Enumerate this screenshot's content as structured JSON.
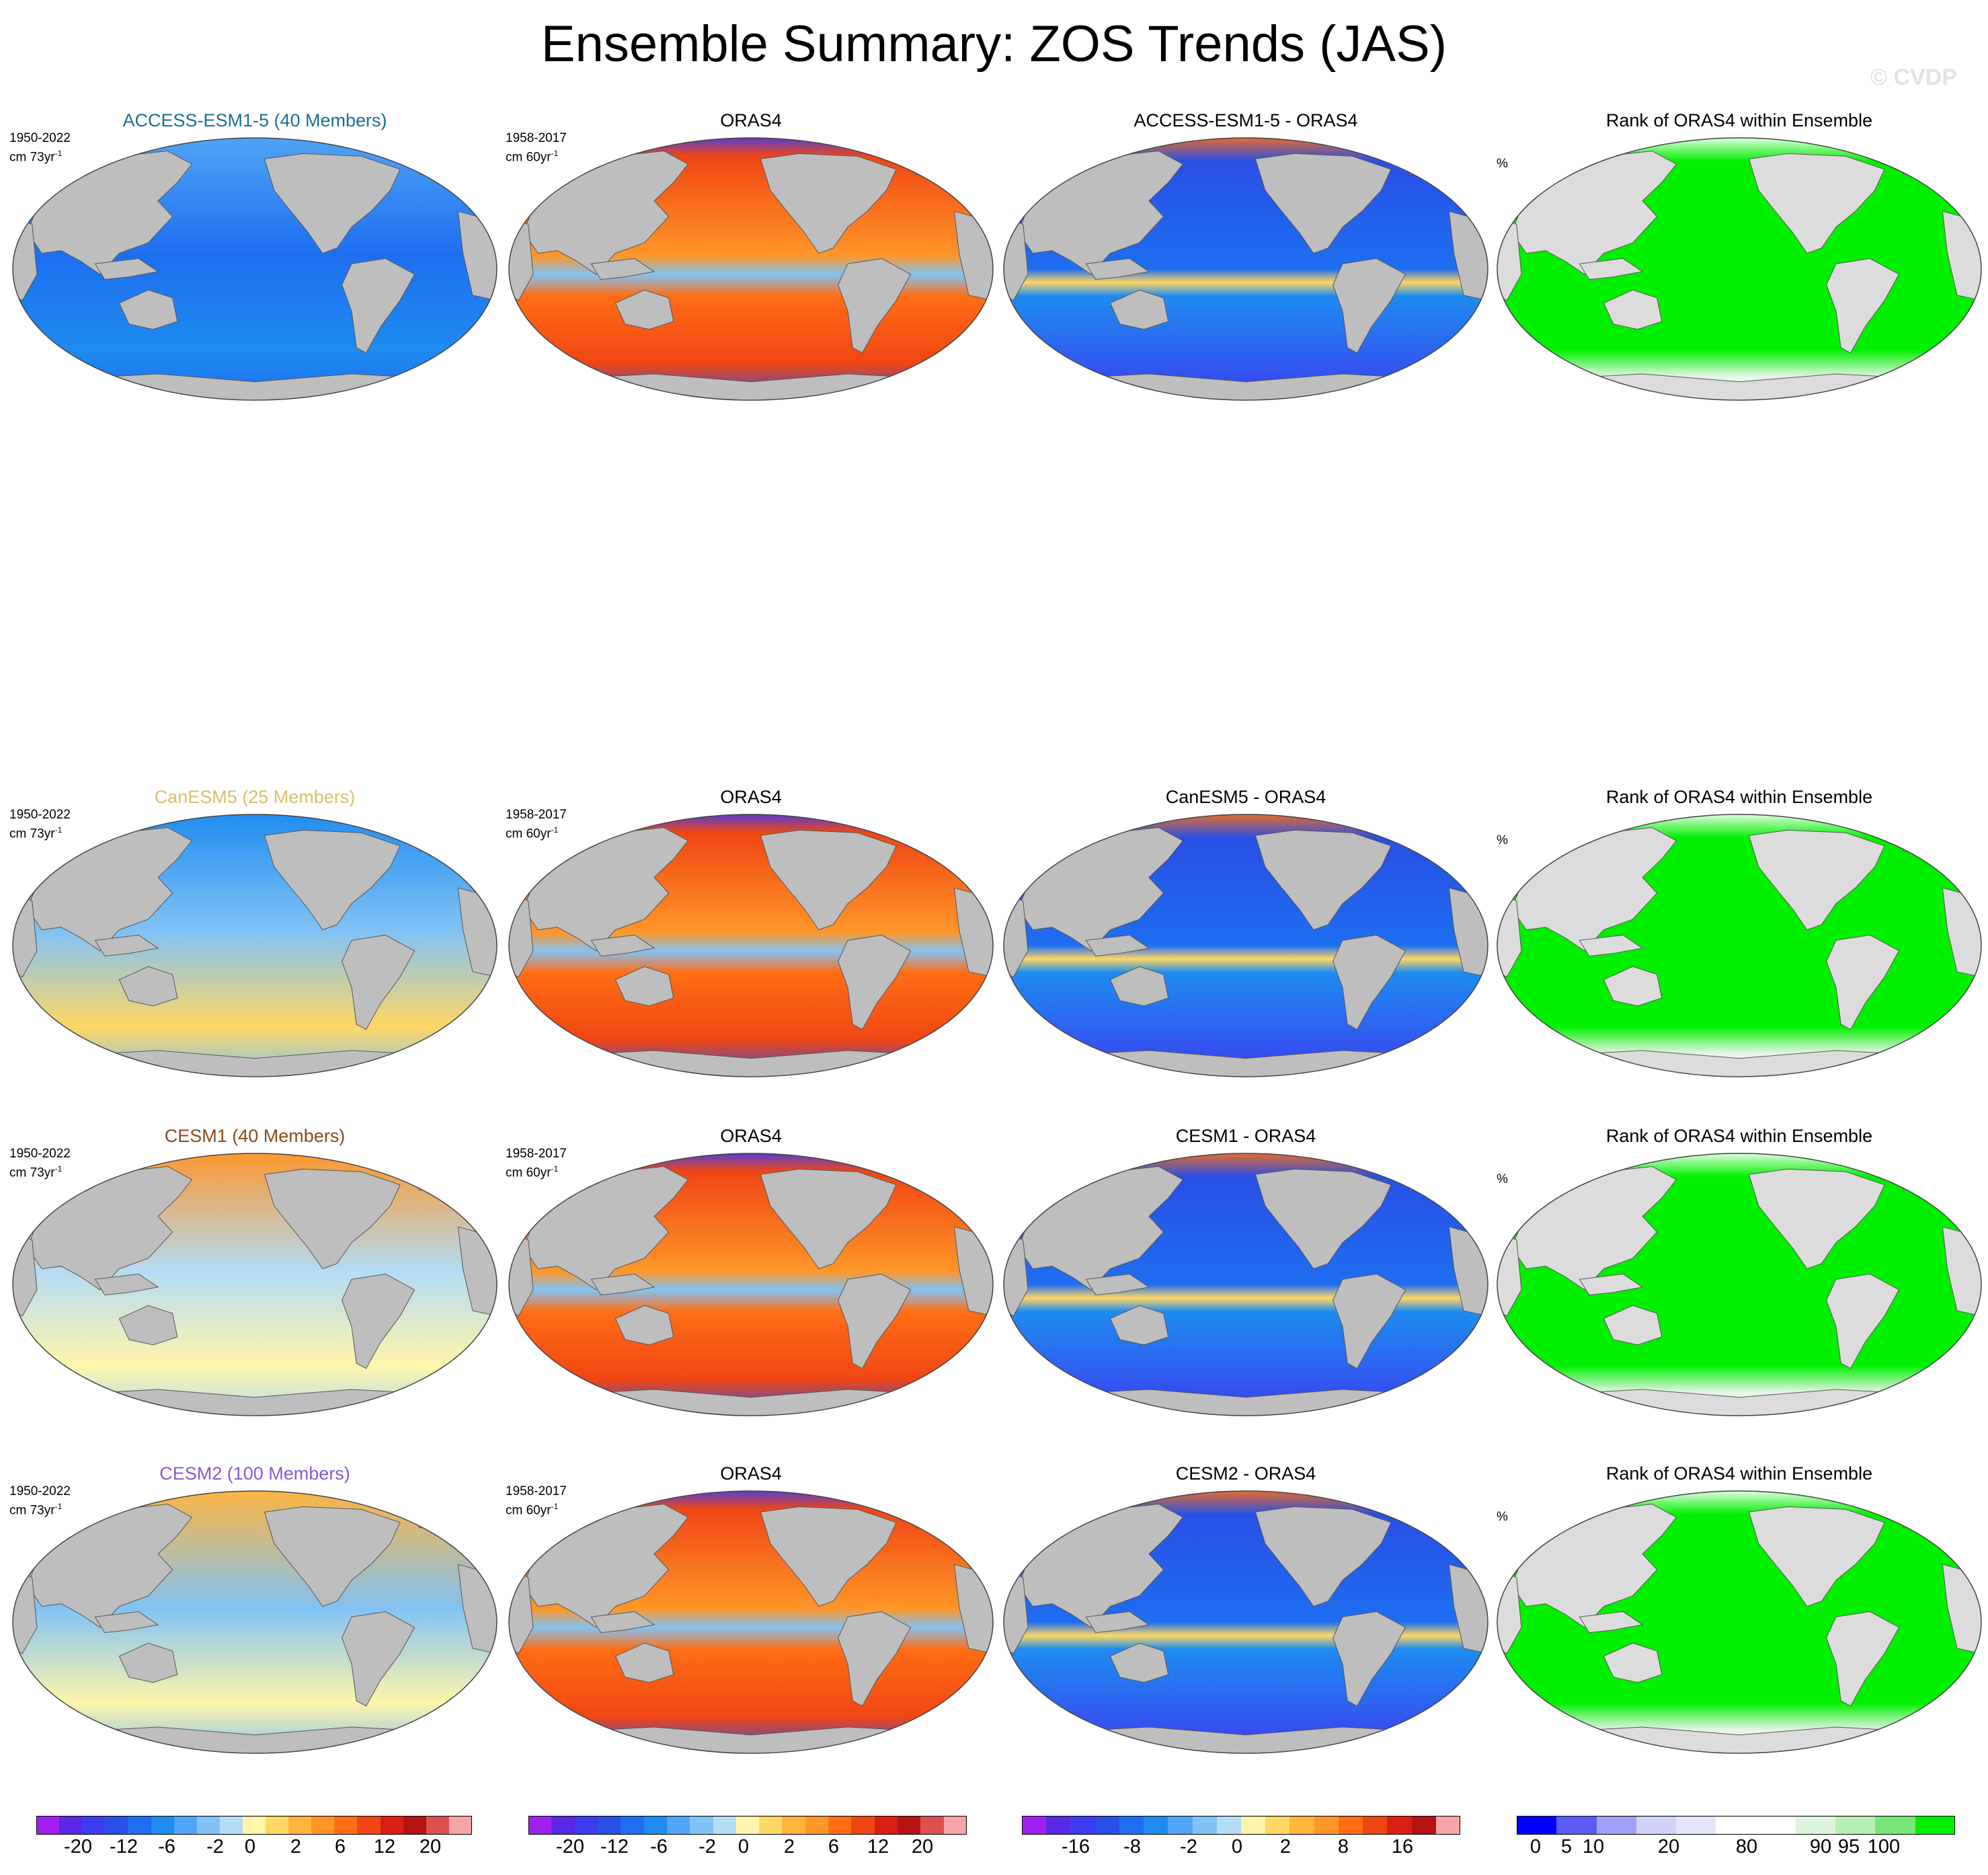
{
  "title": "Ensemble Summary: ZOS Trends (JAS)",
  "watermark": "© CVDP",
  "model_label": {
    "period": "1950-2022",
    "units_prefix": "cm 73yr",
    "units_sup": "-1"
  },
  "obs_label": {
    "period": "1958-2017",
    "units_prefix": "cm 60yr",
    "units_sup": "-1"
  },
  "rank_label": {
    "units": "%"
  },
  "rows": [
    {
      "model": "ACCESS-ESM1-5 (40 Members)",
      "model_color": "#1a6e96",
      "obs": "ORAS4",
      "diff": "ACCESS-ESM1-5 - ORAS4",
      "rank": "Rank of ORAS4 within Ensemble"
    },
    {
      "model": "CanESM5 (25 Members)",
      "model_color": "#d9c06a",
      "obs": "ORAS4",
      "diff": "CanESM5 - ORAS4",
      "rank": "Rank of ORAS4 within Ensemble"
    },
    {
      "model": "CESM1 (40 Members)",
      "model_color": "#8a4a1c",
      "obs": "ORAS4",
      "diff": "CESM1 - ORAS4",
      "rank": "Rank of ORAS4 within Ensemble"
    },
    {
      "model": "CESM2 (100 Members)",
      "model_color": "#8a5ad0",
      "obs": "ORAS4",
      "diff": "CESM2 - ORAS4",
      "rank": "Rank of ORAS4 within Ensemble"
    }
  ],
  "colorbars": {
    "trend": {
      "colors": [
        "#a020f0",
        "#5a28e6",
        "#3c3cf0",
        "#2850e6",
        "#1e6ef0",
        "#1e8cf0",
        "#50a5f5",
        "#82c3f5",
        "#b4dcf5",
        "#fff5aa",
        "#ffd764",
        "#ffb43c",
        "#ff9628",
        "#ff6e14",
        "#f04614",
        "#dc1e14",
        "#b41414",
        "#dc5050",
        "#f5a5a5"
      ],
      "labels": [
        "-20",
        "-12",
        "-6",
        "-2",
        "0",
        "2",
        "6",
        "12",
        "20"
      ]
    },
    "diff": {
      "colors": [
        "#a020f0",
        "#5a28e6",
        "#3c3cf0",
        "#2850e6",
        "#1e6ef0",
        "#1e8cf0",
        "#50a5f5",
        "#82c3f5",
        "#b4dcf5",
        "#fff5aa",
        "#ffd764",
        "#ffb43c",
        "#ff9628",
        "#ff6e14",
        "#f04614",
        "#dc1e14",
        "#b41414",
        "#f5a5a5"
      ],
      "labels": [
        "-16",
        "-8",
        "-2",
        "0",
        "2",
        "8",
        "16"
      ]
    },
    "rank": {
      "colors": [
        "#0000ff",
        "#5a5af5",
        "#a0a0f5",
        "#d2d2f8",
        "#e6e6fa",
        "#ffffff",
        "#ffffff",
        "#dcf5dc",
        "#b4f0b4",
        "#78e678",
        "#00f000"
      ],
      "labels": [
        "0",
        "5",
        "10",
        "20",
        "80",
        "90",
        "95",
        "100"
      ]
    }
  }
}
